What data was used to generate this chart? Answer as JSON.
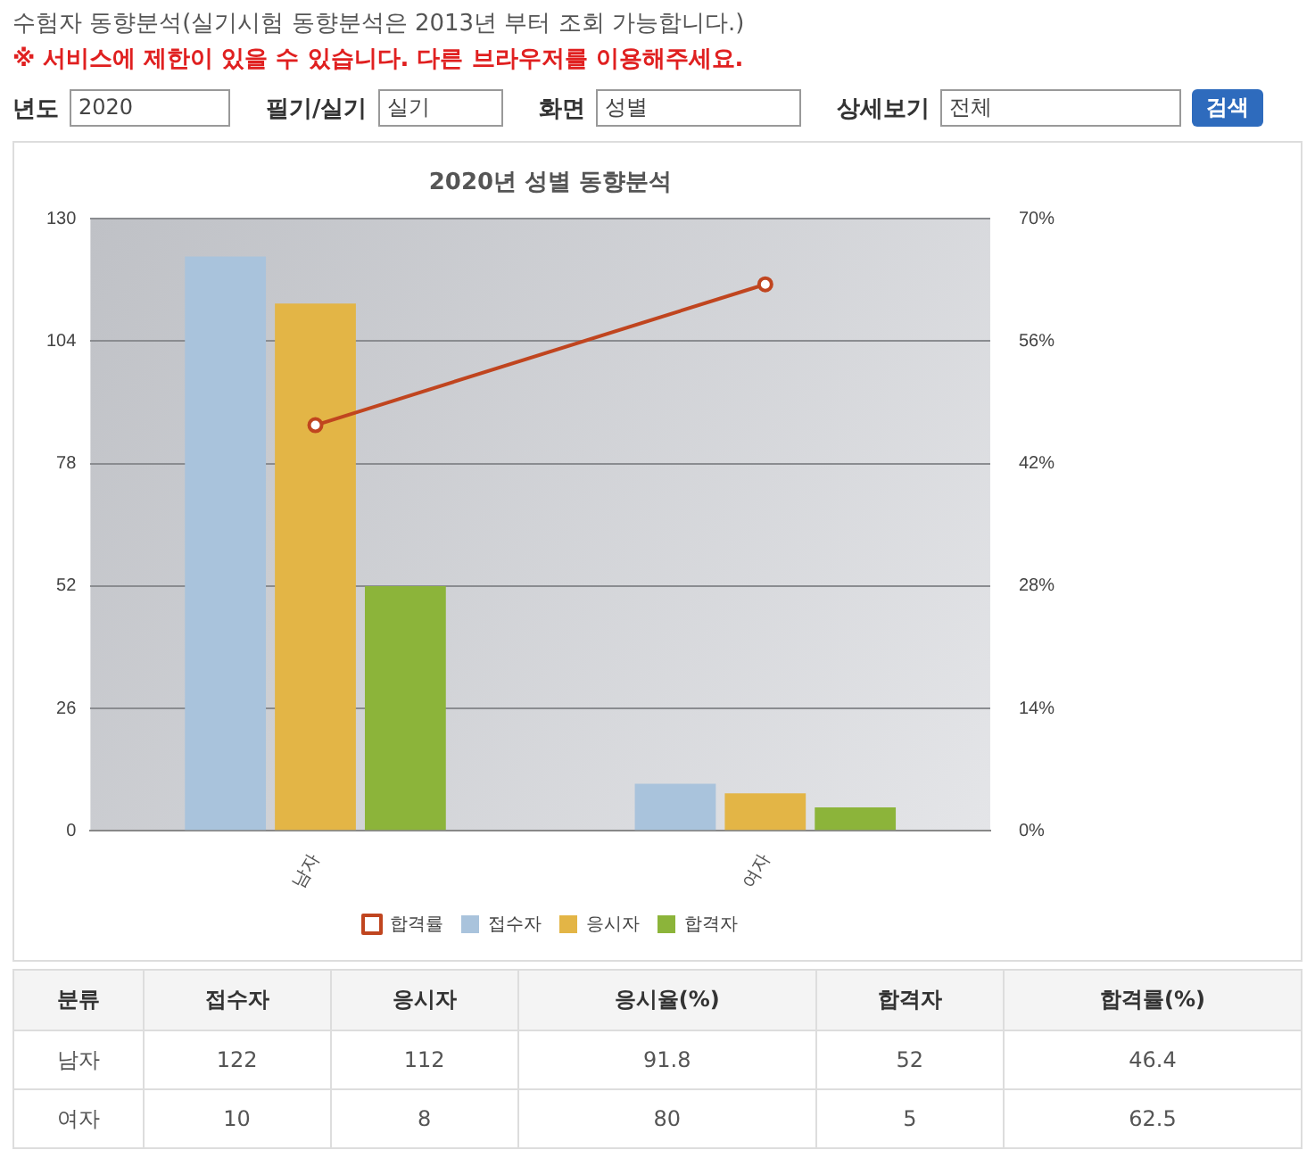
{
  "chart_data": [
    {
      "type": "bar",
      "title": "2020년 성별 동향분석",
      "annotations": [
        "수험자 동향분석(실기시험 동향분석은 2013년 부터 조회 가능합니다.)",
        "※ 서비스에 제한이 있을 수 있습니다. 다른 브라우저를 이용해주세요.",
        "년도",
        "2020",
        "필기/실기",
        "실기",
        "화면",
        "성별",
        "상세보기",
        "전체",
        "검색"
      ],
      "categories": [
        "남자",
        "여자"
      ],
      "series": [
        {
          "name": "접수자",
          "color": "#a9c3dc",
          "values": [
            122,
            10
          ]
        },
        {
          "name": "응시자",
          "color": "#e3b546",
          "values": [
            112,
            8
          ]
        },
        {
          "name": "합격자",
          "color": "#8cb43a",
          "values": [
            52,
            5
          ]
        },
        {
          "name": "합격률",
          "color": "#c0451f",
          "values": [
            46.4,
            62.5
          ],
          "type": "line",
          "axis": "y2"
        }
      ],
      "ylim": [
        0,
        130
      ],
      "yticks": [
        0,
        26,
        52,
        78,
        104,
        130
      ],
      "y2lim": [
        0,
        70
      ],
      "y2ticks": [
        {
          "value": 0,
          "label": "0%"
        },
        {
          "value": 14,
          "label": "14%"
        },
        {
          "value": 28,
          "label": "28%"
        },
        {
          "value": 42,
          "label": "42%"
        },
        {
          "value": 56,
          "label": "56%"
        },
        {
          "value": 70,
          "label": "70%"
        }
      ],
      "grid": "y",
      "legend": "bottom",
      "marker": "circle"
    },
    {
      "type": "other",
      "annotations": [
        "분류",
        "접수자",
        "응시자",
        "응시율(%)",
        "합격자",
        "합격률(%)",
        "남자",
        "122",
        "112",
        "91.8",
        "52",
        "46.4",
        "여자",
        "10",
        "8",
        "80",
        "5",
        "62.5"
      ]
    }
  ]
}
